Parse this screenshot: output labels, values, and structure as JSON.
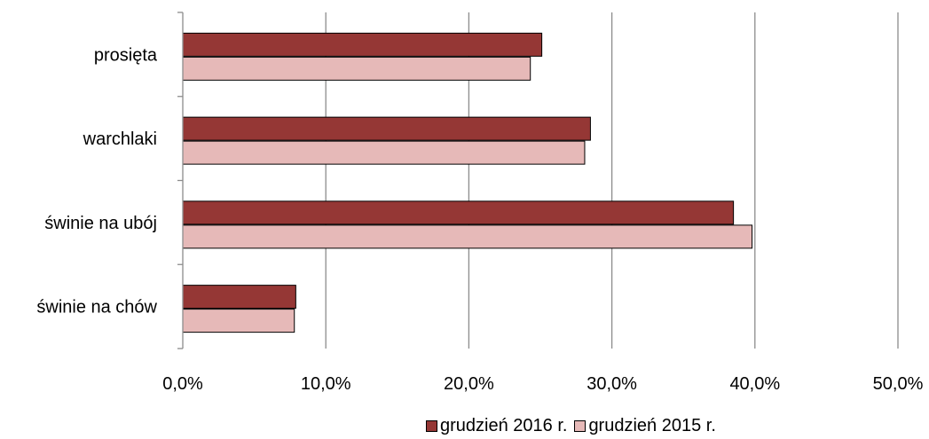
{
  "chart_data": {
    "type": "bar",
    "orientation": "horizontal",
    "categories": [
      "prosięta",
      "warchlaki",
      "świnie na ubój",
      "świnie na chów"
    ],
    "series": [
      {
        "name": "grudzień 2016 r.",
        "color": "#953735",
        "values": [
          25.1,
          28.5,
          38.5,
          7.9
        ]
      },
      {
        "name": "grudzień 2015 r.",
        "color": "#E6B9B8",
        "values": [
          24.3,
          28.1,
          39.8,
          7.8
        ]
      }
    ],
    "xlim": [
      0,
      50
    ],
    "x_ticks": [
      "0,0%",
      "10,0%",
      "20,0%",
      "30,0%",
      "40,0%",
      "50,0%"
    ],
    "grid": true,
    "legend_position": "bottom",
    "title": "",
    "xlabel": "",
    "ylabel": ""
  }
}
